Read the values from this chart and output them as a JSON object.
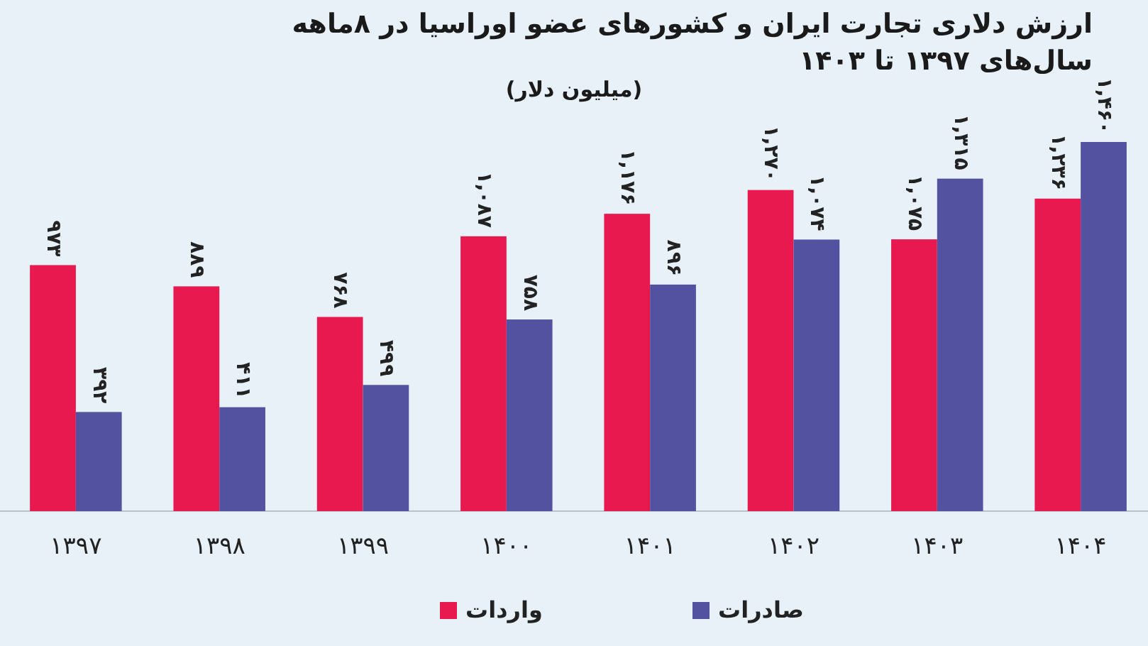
{
  "chart_data": {
    "type": "bar",
    "title": "ارزش دلاری تجارت ایران و کشورهای عضو اوراسیا در ۸ماهه سال‌های ۱۳۹۷ تا ۱۴۰۳",
    "subtitle": "(میلیون دلار)",
    "categories": [
      "۱۳۹۷",
      "۱۳۹۸",
      "۱۳۹۹",
      "۱۴۰۰",
      "۱۴۰۱",
      "۱۴۰۲",
      "۱۴۰۳",
      "۱۴۰۴"
    ],
    "series": [
      {
        "name": "واردات",
        "color": "#e8194f",
        "values": [
          973,
          889,
          768,
          1087,
          1176,
          1270,
          1075,
          1236
        ],
        "value_labels": [
          "۹۷۳",
          "۸۸۹",
          "۷۶۸",
          "۱,۰۸۷",
          "۱,۱۷۶",
          "۱,۲۷۰",
          "۱,۰۷۵",
          "۱,۲۳۶"
        ]
      },
      {
        "name": "صادرات",
        "color": "#5352a0",
        "values": [
          392,
          411,
          499,
          758,
          896,
          1074,
          1315,
          1460
        ],
        "value_labels": [
          "۳۹۲",
          "۴۱۱",
          "۴۹۹",
          "۷۵۸",
          "۸۹۶",
          "۱,۰۷۴",
          "۱,۳۱۵",
          "۱,۴۶۰"
        ]
      }
    ],
    "legend": "bottom"
  }
}
